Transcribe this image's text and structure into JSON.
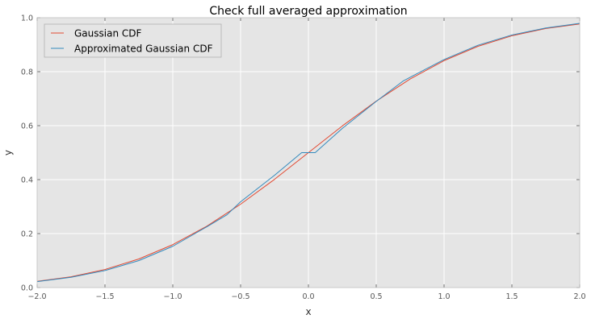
{
  "chart_data": {
    "type": "line",
    "title": "Check full averaged approximation",
    "xlabel": "x",
    "ylabel": "y",
    "xlim": [
      -2.0,
      2.0
    ],
    "ylim": [
      0.0,
      1.0
    ],
    "x_ticks": [
      -2.0,
      -1.5,
      -1.0,
      -0.5,
      0.0,
      0.5,
      1.0,
      1.5,
      2.0
    ],
    "x_tick_labels": [
      "−2.0",
      "−1.5",
      "−1.0",
      "−0.5",
      "0.0",
      "0.5",
      "1.0",
      "1.5",
      "2.0"
    ],
    "y_ticks": [
      0.0,
      0.2,
      0.4,
      0.6,
      0.8,
      1.0
    ],
    "y_tick_labels": [
      "0.0",
      "0.2",
      "0.4",
      "0.6",
      "0.8",
      "1.0"
    ],
    "grid": true,
    "legend_position": "top-left",
    "background_color": "#e5e5e5",
    "series": [
      {
        "name": "Gaussian CDF",
        "color": "#e24a33",
        "x": [
          -2.0,
          -1.75,
          -1.5,
          -1.25,
          -1.0,
          -0.75,
          -0.5,
          -0.25,
          0.0,
          0.25,
          0.5,
          0.75,
          1.0,
          1.25,
          1.5,
          1.75,
          2.0
        ],
        "y": [
          0.023,
          0.04,
          0.067,
          0.106,
          0.159,
          0.227,
          0.309,
          0.401,
          0.5,
          0.599,
          0.691,
          0.773,
          0.841,
          0.894,
          0.933,
          0.96,
          0.977
        ]
      },
      {
        "name": "Approximated Gaussian CDF",
        "color": "#348abd",
        "x": [
          -2.0,
          -1.75,
          -1.5,
          -1.25,
          -1.0,
          -0.75,
          -0.6,
          -0.5,
          -0.25,
          -0.05,
          0.05,
          0.25,
          0.5,
          0.7,
          1.0,
          1.25,
          1.5,
          1.75,
          2.0
        ],
        "y": [
          0.022,
          0.038,
          0.063,
          0.1,
          0.153,
          0.225,
          0.27,
          0.318,
          0.416,
          0.5,
          0.5,
          0.59,
          0.69,
          0.766,
          0.845,
          0.898,
          0.936,
          0.962,
          0.979
        ]
      }
    ]
  }
}
